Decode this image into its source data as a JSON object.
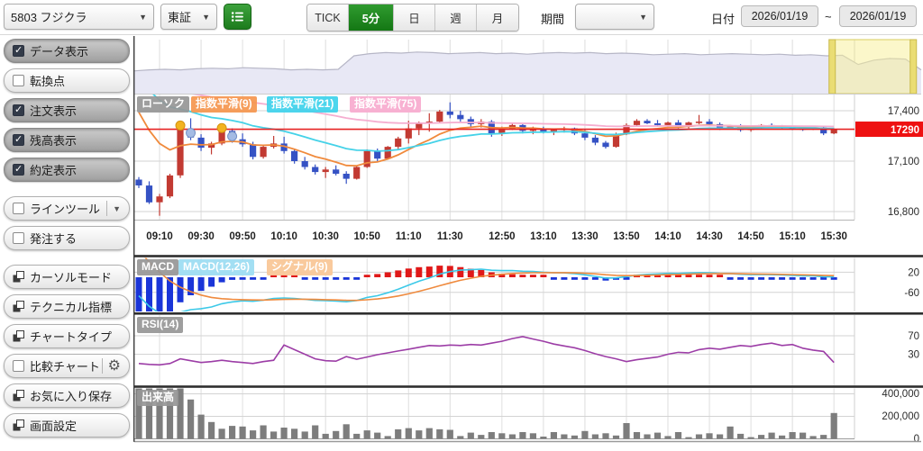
{
  "toolbar": {
    "symbol": "5803 フジクラ",
    "exchange": "東証",
    "interval_buttons": [
      "TICK",
      "5分",
      "日",
      "週",
      "月"
    ],
    "interval_active": "5分",
    "period_label": "期間",
    "period_value": "",
    "date_label": "日付",
    "date_from": "2026/01/19",
    "date_tilde": "~",
    "date_to": "2026/01/19"
  },
  "sidebar": {
    "toggles": [
      {
        "label": "データ表示",
        "checked": true
      },
      {
        "label": "転換点",
        "checked": false
      },
      {
        "label": "注文表示",
        "checked": true
      },
      {
        "label": "残高表示",
        "checked": true
      },
      {
        "label": "約定表示",
        "checked": true
      }
    ],
    "line_tool": {
      "label": "ラインツール",
      "checked": false
    },
    "order": {
      "label": "発注する",
      "checked": false
    },
    "action_buttons": [
      "カーソルモード",
      "テクニカル指標",
      "チャートタイプ"
    ],
    "compare": {
      "label": "比較チャート",
      "checked": false
    },
    "bottom_buttons": [
      "お気に入り保存",
      "画面設定"
    ]
  },
  "chart_data": {
    "type": "candlestick",
    "x_tick_labels": [
      "09:10",
      "09:30",
      "09:50",
      "10:10",
      "10:30",
      "10:50",
      "11:10",
      "11:30",
      "12:50",
      "13:10",
      "13:30",
      "13:50",
      "14:10",
      "14:30",
      "14:50",
      "15:10",
      "15:30"
    ],
    "x_tick_indices": [
      2,
      6,
      10,
      14,
      18,
      22,
      26,
      30,
      35,
      39,
      43,
      47,
      51,
      55,
      59,
      63,
      67
    ],
    "series_labels": {
      "candle": "ローソク",
      "ema9": "指数平滑(9)",
      "ema21": "指数平滑(21)",
      "ema75": "指数平滑(75)"
    },
    "price_axis": {
      "ticks": [
        "17,400",
        "17,100",
        "16,800"
      ],
      "tick_values": [
        17400,
        17100,
        16800
      ],
      "last_price": 17290,
      "last_price_label": "17290"
    },
    "ema": {
      "periods": [
        9,
        21,
        75
      ],
      "seeds": [
        17500,
        17650,
        17600
      ],
      "alphas": [
        0.2,
        0.0909,
        0.032
      ],
      "colors": [
        "#f08a3c",
        "#45d2e8",
        "#f5aed0"
      ]
    },
    "candles": [
      [
        "09:00",
        16990,
        17005,
        16940,
        16955,
        520000
      ],
      [
        "09:05",
        16955,
        16980,
        16845,
        16855,
        560000
      ],
      [
        "09:10",
        16855,
        16905,
        16775,
        16890,
        470000
      ],
      [
        "09:15",
        16890,
        17025,
        16880,
        17015,
        450000
      ],
      [
        "09:20",
        17015,
        17300,
        17000,
        17290,
        460000
      ],
      [
        "09:25",
        17290,
        17355,
        17225,
        17240,
        350000
      ],
      [
        "09:30",
        17240,
        17260,
        17160,
        17180,
        215000
      ],
      [
        "09:35",
        17180,
        17215,
        17140,
        17205,
        150000
      ],
      [
        "09:40",
        17205,
        17290,
        17195,
        17280,
        90000
      ],
      [
        "09:45",
        17280,
        17295,
        17210,
        17230,
        115000
      ],
      [
        "09:50",
        17230,
        17265,
        17185,
        17200,
        110000
      ],
      [
        "09:55",
        17200,
        17215,
        17110,
        17125,
        75000
      ],
      [
        "10:00",
        17125,
        17195,
        17115,
        17185,
        120000
      ],
      [
        "10:05",
        17185,
        17250,
        17175,
        17205,
        65000
      ],
      [
        "10:10",
        17205,
        17245,
        17145,
        17160,
        100000
      ],
      [
        "10:15",
        17160,
        17175,
        17085,
        17100,
        90000
      ],
      [
        "10:20",
        17100,
        17125,
        17050,
        17065,
        65000
      ],
      [
        "10:25",
        17065,
        17080,
        17020,
        17035,
        120000
      ],
      [
        "10:30",
        17035,
        17065,
        17000,
        17050,
        45000
      ],
      [
        "10:35",
        17050,
        17075,
        17015,
        17025,
        70000
      ],
      [
        "10:40",
        17025,
        17040,
        16965,
        16995,
        130000
      ],
      [
        "10:45",
        16995,
        17070,
        16990,
        17065,
        45000
      ],
      [
        "10:50",
        17065,
        17170,
        17060,
        17160,
        75000
      ],
      [
        "10:55",
        17160,
        17175,
        17100,
        17115,
        55000
      ],
      [
        "11:00",
        17115,
        17190,
        17110,
        17185,
        25000
      ],
      [
        "11:05",
        17185,
        17245,
        17165,
        17235,
        85000
      ],
      [
        "11:10",
        17235,
        17340,
        17205,
        17295,
        95000
      ],
      [
        "11:15",
        17295,
        17335,
        17255,
        17325,
        75000
      ],
      [
        "11:20",
        17325,
        17385,
        17275,
        17335,
        95000
      ],
      [
        "11:25",
        17335,
        17405,
        17325,
        17395,
        85000
      ],
      [
        "11:30",
        17395,
        17450,
        17355,
        17375,
        80000
      ],
      [
        "12:30",
        17375,
        17400,
        17335,
        17350,
        25000
      ],
      [
        "12:35",
        17350,
        17365,
        17305,
        17320,
        55000
      ],
      [
        "12:40",
        17320,
        17350,
        17300,
        17335,
        35000
      ],
      [
        "12:45",
        17335,
        17345,
        17245,
        17265,
        60000
      ],
      [
        "12:50",
        17265,
        17305,
        17250,
        17290,
        50000
      ],
      [
        "12:55",
        17290,
        17325,
        17285,
        17315,
        40000
      ],
      [
        "13:00",
        17315,
        17320,
        17265,
        17280,
        60000
      ],
      [
        "13:05",
        17280,
        17305,
        17260,
        17295,
        50000
      ],
      [
        "13:10",
        17295,
        17305,
        17265,
        17275,
        20000
      ],
      [
        "13:15",
        17275,
        17295,
        17255,
        17285,
        60000
      ],
      [
        "13:20",
        17285,
        17305,
        17270,
        17295,
        40000
      ],
      [
        "13:25",
        17295,
        17300,
        17255,
        17265,
        30000
      ],
      [
        "13:30",
        17265,
        17285,
        17225,
        17240,
        70000
      ],
      [
        "13:35",
        17240,
        17255,
        17195,
        17210,
        40000
      ],
      [
        "13:40",
        17210,
        17220,
        17175,
        17185,
        50000
      ],
      [
        "13:45",
        17185,
        17270,
        17180,
        17260,
        30000
      ],
      [
        "13:50",
        17260,
        17325,
        17255,
        17315,
        140000
      ],
      [
        "13:55",
        17315,
        17350,
        17305,
        17340,
        60000
      ],
      [
        "14:00",
        17340,
        17350,
        17320,
        17325,
        40000
      ],
      [
        "14:05",
        17325,
        17345,
        17305,
        17315,
        55000
      ],
      [
        "14:10",
        17315,
        17335,
        17300,
        17330,
        25000
      ],
      [
        "14:15",
        17330,
        17345,
        17295,
        17305,
        60000
      ],
      [
        "14:20",
        17305,
        17335,
        17295,
        17330,
        15000
      ],
      [
        "14:25",
        17330,
        17375,
        17320,
        17335,
        40000
      ],
      [
        "14:30",
        17335,
        17350,
        17310,
        17320,
        50000
      ],
      [
        "14:35",
        17320,
        17330,
        17285,
        17295,
        40000
      ],
      [
        "14:40",
        17295,
        17315,
        17290,
        17310,
        110000
      ],
      [
        "14:45",
        17310,
        17320,
        17275,
        17285,
        45000
      ],
      [
        "14:50",
        17285,
        17305,
        17275,
        17300,
        15000
      ],
      [
        "14:55",
        17300,
        17320,
        17290,
        17315,
        35000
      ],
      [
        "15:00",
        17315,
        17325,
        17295,
        17305,
        55000
      ],
      [
        "15:05",
        17305,
        17315,
        17290,
        17300,
        30000
      ],
      [
        "15:10",
        17300,
        17310,
        17285,
        17295,
        60000
      ],
      [
        "15:15",
        17295,
        17305,
        17280,
        17290,
        55000
      ],
      [
        "15:20",
        17290,
        17305,
        17285,
        17300,
        25000
      ],
      [
        "15:25",
        17300,
        17310,
        17255,
        17265,
        35000
      ],
      [
        "15:30",
        17265,
        17295,
        17260,
        17290,
        230000
      ]
    ],
    "markers": {
      "yellow": [
        {
          "i": 4,
          "p": 17312
        },
        {
          "i": 8,
          "p": 17297
        }
      ],
      "blue": [
        {
          "i": 5,
          "p": 17268
        },
        {
          "i": 9,
          "p": 17248
        }
      ]
    },
    "macd_panel": {
      "labels": {
        "name": "MACD",
        "line": "MACD(12,26)",
        "signal": "シグナル(9)"
      },
      "axis_ticks": [
        "20",
        "-60"
      ],
      "tick_values": [
        20,
        -60
      ],
      "seeds": {
        "ema12": 17530,
        "ema26": 17560,
        "signal": 150
      }
    },
    "rsi_panel": {
      "label": "RSI(14)",
      "axis_ticks": [
        "70",
        "30"
      ],
      "tick_values": [
        70,
        30
      ],
      "values": [
        10,
        8,
        7,
        10,
        20,
        16,
        12,
        14,
        17,
        14,
        12,
        10,
        14,
        17,
        50,
        40,
        30,
        20,
        16,
        15,
        25,
        19,
        24,
        29,
        33,
        37,
        41,
        45,
        49,
        48,
        50,
        49,
        51,
        50,
        54,
        58,
        64,
        68,
        63,
        58,
        52,
        48,
        44,
        38,
        31,
        25,
        20,
        14,
        18,
        21,
        24,
        30,
        34,
        33,
        40,
        43,
        41,
        45,
        49,
        47,
        51,
        54,
        49,
        51,
        43,
        39,
        36,
        12
      ]
    },
    "volume_panel": {
      "label": "出来高",
      "axis_ticks": [
        "400,000",
        "200,000",
        "0"
      ],
      "tick_values": [
        400000,
        200000,
        0
      ]
    },
    "navigator": {
      "y": [
        0.58,
        0.56,
        0.55,
        0.56,
        0.54,
        0.53,
        0.54,
        0.52,
        0.53,
        0.54,
        0.56,
        0.55,
        0.56,
        0.55,
        0.3,
        0.26,
        0.24,
        0.25,
        0.23,
        0.24,
        0.26,
        0.25,
        0.24,
        0.26,
        0.25,
        0.27,
        0.25,
        0.24,
        0.25,
        0.24,
        0.26,
        0.25,
        0.26,
        0.28,
        0.27,
        0.26,
        0.28,
        0.27,
        0.26,
        0.27,
        0.28,
        0.27,
        0.29,
        0.28,
        0.3,
        0.29,
        0.46,
        0.38,
        0.35,
        0.36,
        0.56
      ],
      "selection": [
        0.887,
        0.99
      ]
    },
    "colors": {
      "up": "#c23a32",
      "down": "#3552c4",
      "price_line": "#e62222",
      "macd_pos": "#e01818",
      "macd_neg": "#1a35d8",
      "rsi": "#9c3da6",
      "volume": "#7d7d7d"
    }
  }
}
